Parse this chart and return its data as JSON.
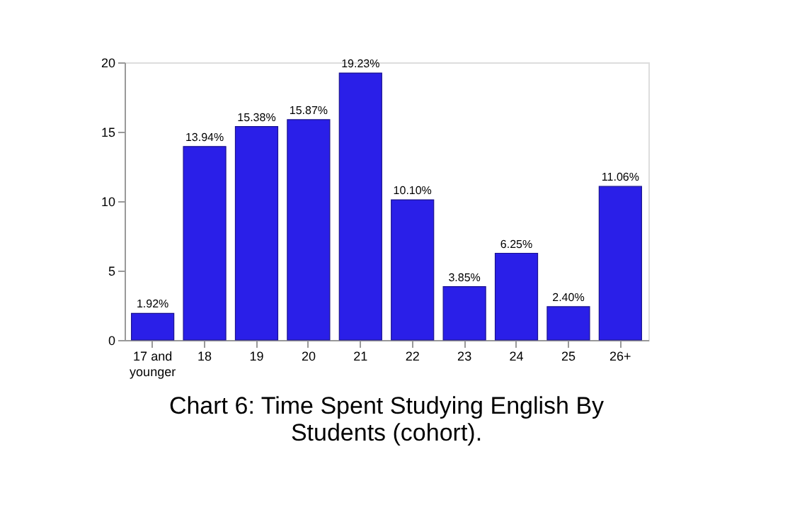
{
  "chart_data": {
    "type": "bar",
    "title": "Chart 6: Time Spent Studying English By Students (cohort).",
    "categories": [
      "17 and younger",
      "18",
      "19",
      "20",
      "21",
      "22",
      "23",
      "24",
      "25",
      "26+"
    ],
    "values": [
      1.92,
      13.94,
      15.38,
      15.87,
      19.23,
      10.1,
      3.85,
      6.25,
      2.4,
      11.06
    ],
    "value_labels": [
      "1.92%",
      "13.94%",
      "15.38%",
      "15.87%",
      "19.23%",
      "10.10%",
      "3.85%",
      "6.25%",
      "2.40%",
      "11.06%"
    ],
    "color": "#2a1fe8",
    "ylim": [
      0,
      20
    ],
    "yticks": [
      0,
      5,
      10,
      15,
      20
    ],
    "grid": false
  }
}
